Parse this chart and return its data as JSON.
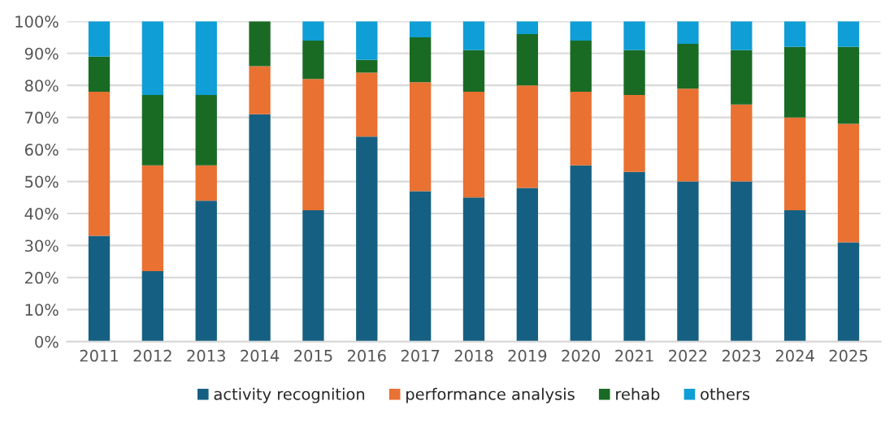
{
  "chart_data": {
    "type": "bar",
    "stacked": true,
    "categories": [
      "2011",
      "2012",
      "2013",
      "2014",
      "2015",
      "2016",
      "2017",
      "2018",
      "2019",
      "2020",
      "2021",
      "2022",
      "2023",
      "2024",
      "2025"
    ],
    "series": [
      {
        "name": "activity recognition",
        "color": "#156082",
        "values": [
          33,
          22,
          44,
          71,
          41,
          64,
          47,
          45,
          48,
          55,
          53,
          50,
          50,
          41,
          31
        ]
      },
      {
        "name": "performance analysis",
        "color": "#e97132",
        "values": [
          45,
          33,
          11,
          15,
          41,
          20,
          34,
          33,
          32,
          23,
          24,
          29,
          24,
          29,
          37
        ]
      },
      {
        "name": "rehab",
        "color": "#196b24",
        "values": [
          11,
          22,
          22,
          14,
          12,
          4,
          14,
          13,
          16,
          16,
          14,
          14,
          17,
          22,
          24
        ]
      },
      {
        "name": "others",
        "color": "#0f9ed5",
        "values": [
          11,
          23,
          23,
          null,
          6,
          12,
          5,
          9,
          4,
          6,
          9,
          7,
          9,
          8,
          8
        ]
      }
    ],
    "ylim": [
      0,
      100
    ],
    "yticks": [
      {
        "value": 0,
        "label": "0%"
      },
      {
        "value": 10,
        "label": "10%"
      },
      {
        "value": 20,
        "label": "20%"
      },
      {
        "value": 30,
        "label": "30%"
      },
      {
        "value": 40,
        "label": "40%"
      },
      {
        "value": 50,
        "label": "50%"
      },
      {
        "value": 60,
        "label": "60%"
      },
      {
        "value": 70,
        "label": "70%"
      },
      {
        "value": 80,
        "label": "80%"
      },
      {
        "value": 90,
        "label": "90%"
      },
      {
        "value": 100,
        "label": "100%"
      }
    ],
    "grid": "y",
    "legend": "bottom"
  }
}
